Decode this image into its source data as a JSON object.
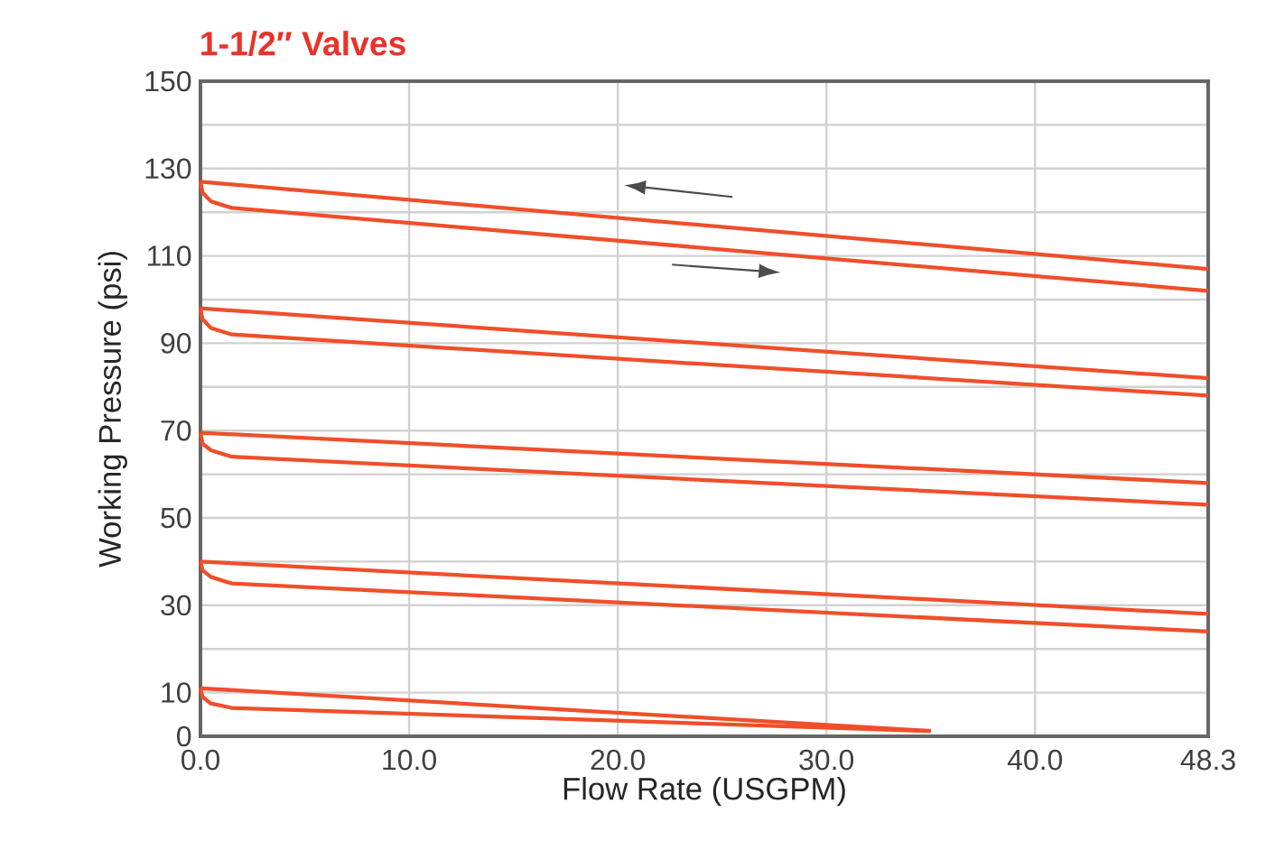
{
  "chart_data": {
    "type": "line",
    "title": "1-1/2″ Valves",
    "xlabel": "Flow Rate (USGPM)",
    "ylabel": "Working Pressure (psi)",
    "xlim": [
      0,
      48.3
    ],
    "ylim": [
      0,
      150
    ],
    "xticks": [
      {
        "value": 0,
        "label": "0.0"
      },
      {
        "value": 10,
        "label": "10.0"
      },
      {
        "value": 20,
        "label": "20.0"
      },
      {
        "value": 30,
        "label": "30.0"
      },
      {
        "value": 40,
        "label": "40.0"
      },
      48.3
    ],
    "yticks": [
      0,
      10,
      {
        "value": 20,
        "label": null
      },
      30,
      {
        "value": 40,
        "label": null
      },
      50,
      {
        "value": 60,
        "label": null
      },
      70,
      {
        "value": 80,
        "label": null
      },
      90,
      {
        "value": 100,
        "label": null
      },
      110,
      {
        "value": 120,
        "label": null
      },
      130,
      {
        "value": 140,
        "label": null
      },
      150
    ],
    "grid": true,
    "line_style": "solid",
    "marker": "none",
    "series": [
      {
        "color": "#f04e2a",
        "x": [
          0,
          48.3
        ],
        "values": [
          127,
          107
        ]
      },
      {
        "color": "#f04e2a",
        "x": [
          0,
          0.1,
          0.5,
          1.5,
          48.3
        ],
        "values": [
          127,
          124.5,
          122.5,
          121,
          102
        ]
      },
      {
        "color": "#f04e2a",
        "x": [
          0,
          48.3
        ],
        "values": [
          98,
          82
        ]
      },
      {
        "color": "#f04e2a",
        "x": [
          0,
          0.1,
          0.5,
          1.5,
          48.3
        ],
        "values": [
          98,
          95.5,
          93.5,
          92,
          78
        ]
      },
      {
        "color": "#f04e2a",
        "x": [
          0,
          48.3
        ],
        "values": [
          69.5,
          58
        ]
      },
      {
        "color": "#f04e2a",
        "x": [
          0,
          0.1,
          0.5,
          1.5,
          48.3
        ],
        "values": [
          69.5,
          67,
          65.5,
          64,
          53
        ]
      },
      {
        "color": "#f04e2a",
        "x": [
          0,
          48.3
        ],
        "values": [
          40,
          28
        ]
      },
      {
        "color": "#f04e2a",
        "x": [
          0,
          0.1,
          0.5,
          1.5,
          48.3
        ],
        "values": [
          40,
          38,
          36.5,
          35,
          24
        ]
      },
      {
        "color": "#f04e2a",
        "x": [
          0,
          35
        ],
        "values": [
          11,
          1.2
        ]
      },
      {
        "color": "#f04e2a",
        "x": [
          0,
          0.1,
          0.5,
          1.5,
          35
        ],
        "values": [
          11,
          9,
          7.5,
          6.5,
          1.2
        ]
      }
    ]
  }
}
